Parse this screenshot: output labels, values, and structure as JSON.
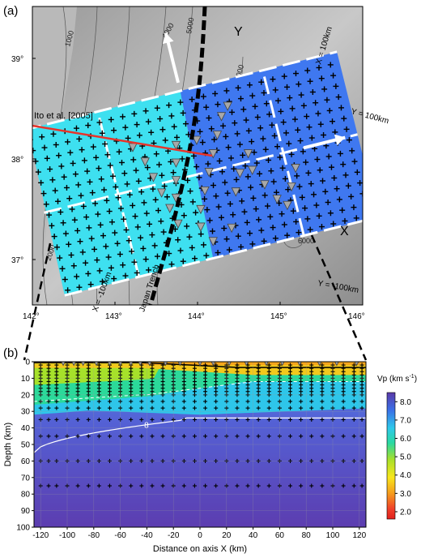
{
  "panel_a": {
    "label": "(a)",
    "lat_labels": [
      "39°",
      "38°",
      "37°"
    ],
    "lon_labels": [
      "142°",
      "143°",
      "144°",
      "145°",
      "146°"
    ],
    "depth_contours": [
      "1000",
      "2000",
      "3000",
      "4000",
      "5000",
      "6000",
      "7000",
      "1000",
      "2000",
      "6000",
      "6000"
    ],
    "axis_Y_label": "Y",
    "axis_X_label": "X",
    "annot_x_plus": "X = 100km",
    "annot_x_minus": "X = -100km",
    "annot_y_plus": "Y = 100km",
    "annot_y_minus": "Y = -100km",
    "trench_label": "Japan Trench",
    "ref_line_label": "Ito et al. [2005]",
    "colors": {
      "continental_block": "#3ee0f0",
      "oceanic_block": "#3f78f0",
      "ref_line": "#e8332a",
      "trench": "#000000"
    }
  },
  "panel_b": {
    "label": "(b)",
    "chart_data": {
      "type": "heatmap",
      "title": "",
      "xlabel": "Distance on axis X (km)",
      "ylabel": "Depth (km)",
      "xlim": [
        -125,
        125
      ],
      "ylim": [
        100,
        0
      ],
      "x_ticks": [
        -120,
        -100,
        -80,
        -60,
        -40,
        -20,
        0,
        20,
        40,
        60,
        80,
        100,
        120
      ],
      "y_ticks": [
        0,
        10,
        20,
        30,
        40,
        50,
        60,
        70,
        80,
        90,
        100
      ],
      "contour_labels": [
        "8"
      ],
      "colorbar": {
        "label": "Vp (km s",
        "label_sup": "-1",
        "label_end": ")",
        "ticks": [
          8.0,
          7.0,
          6.0,
          5.0,
          4.0,
          3.0,
          2.0
        ],
        "tick_labels": [
          "8.0",
          "7.0",
          "6.0",
          "5.0",
          "4.0",
          "3.0",
          "2.0"
        ],
        "range": [
          1.6,
          8.5
        ]
      },
      "grid_node_x": [
        -120,
        -114,
        -108,
        -100,
        -92,
        -84,
        -76,
        -68,
        -60,
        -52,
        -44,
        -36,
        -28,
        -20,
        -12,
        -4,
        4,
        12,
        20,
        28,
        36,
        44,
        52,
        60,
        68,
        76,
        84,
        92,
        100,
        108,
        116,
        122
      ],
      "grid_node_depths": [
        2,
        4,
        6,
        8,
        10,
        12,
        14,
        16,
        18,
        20,
        24,
        28,
        35,
        45,
        60,
        75
      ],
      "obs_x": [
        -103,
        -95,
        -88,
        -78,
        -68,
        -60,
        -52,
        -45,
        -38,
        -26,
        -15,
        0,
        10,
        22,
        35,
        50,
        62,
        75,
        90,
        103,
        118
      ]
    }
  }
}
